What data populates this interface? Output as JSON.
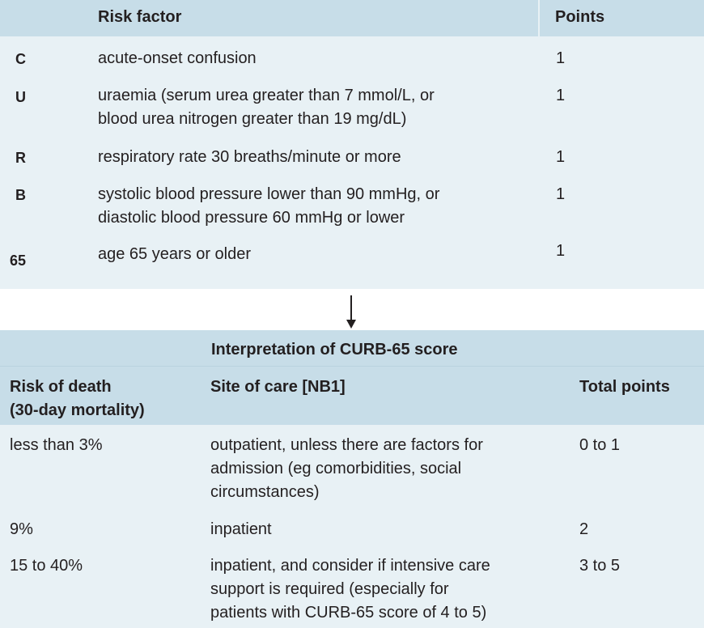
{
  "risk_table": {
    "headers": {
      "risk_factor": "Risk factor",
      "points": "Points"
    },
    "rows": [
      {
        "letter": "C",
        "description": [
          "acute-onset confusion"
        ],
        "points": "1"
      },
      {
        "letter": "U",
        "description": [
          "uraemia (serum urea greater than 7 mmol/L, or",
          "blood urea nitrogen greater than 19 mg/dL)"
        ],
        "points": "1"
      },
      {
        "letter": "R",
        "description": [
          "respiratory rate 30 breaths/minute or more"
        ],
        "points": "1"
      },
      {
        "letter": "B",
        "description": [
          "systolic blood pressure lower than 90 mmHg, or",
          "diastolic blood pressure 60 mmHg or lower"
        ],
        "points": "1"
      },
      {
        "letter": "65",
        "description": [
          "age 65 years or older"
        ],
        "points": "1"
      }
    ]
  },
  "interpretation_table": {
    "title": "Interpretation of CURB-65 score",
    "headers": {
      "risk_of_death": [
        "Risk of death",
        "(30-day mortality)"
      ],
      "site_of_care": "Site of care [NB1]",
      "total_points": "Total points"
    },
    "rows": [
      {
        "risk": "less than 3%",
        "site": [
          "outpatient, unless there are factors for",
          "admission (eg comorbidities, social",
          "circumstances)"
        ],
        "points": "0 to 1"
      },
      {
        "risk": "9%",
        "site": [
          "inpatient"
        ],
        "points": "2"
      },
      {
        "risk": "15 to 40%",
        "site": [
          "inpatient, and consider if intensive care",
          "support is required (especially for",
          "patients with CURB-65 score of 4 to 5)"
        ],
        "points": "3 to 5"
      }
    ]
  }
}
